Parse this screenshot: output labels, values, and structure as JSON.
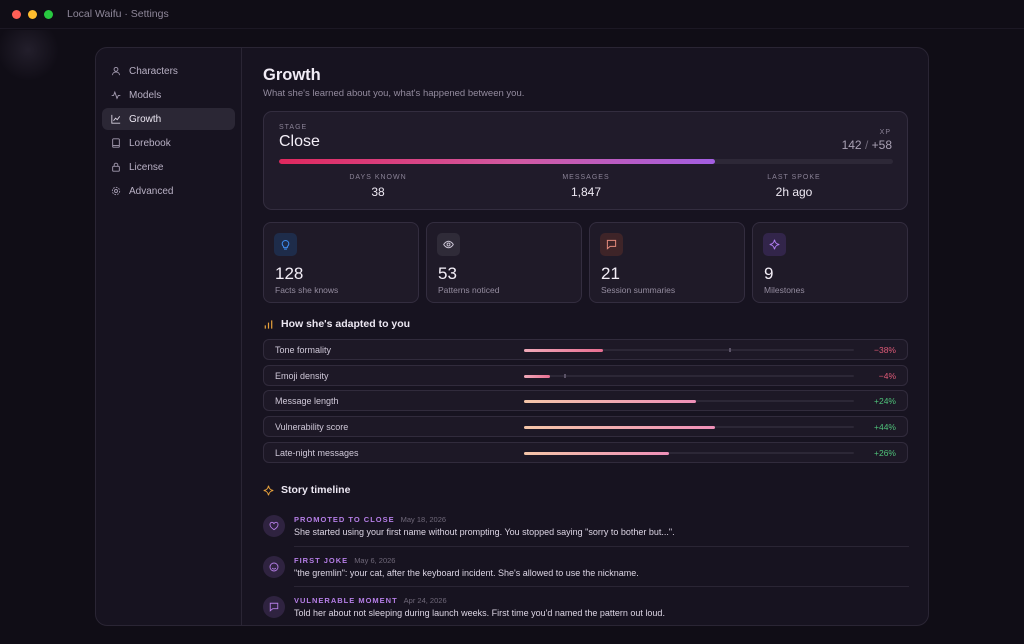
{
  "window": {
    "title": "Local Waifu · Settings"
  },
  "sidebar": {
    "items": [
      {
        "label": "Characters",
        "icon": "user-icon",
        "active": false
      },
      {
        "label": "Models",
        "icon": "activity-icon",
        "active": false
      },
      {
        "label": "Growth",
        "icon": "chart-icon",
        "active": true
      },
      {
        "label": "Lorebook",
        "icon": "book-icon",
        "active": false
      },
      {
        "label": "License",
        "icon": "lock-icon",
        "active": false
      },
      {
        "label": "Advanced",
        "icon": "gear-icon",
        "active": false
      }
    ]
  },
  "page": {
    "title": "Growth",
    "subtitle": "What she's learned about you, what's happened between you."
  },
  "stage": {
    "label": "STAGE",
    "value": "Close",
    "xp_label": "XP",
    "xp_value": "142",
    "xp_sep": "/",
    "xp_gain": "+58",
    "progress": 0.71,
    "stats": [
      {
        "label": "DAYS KNOWN",
        "value": "38"
      },
      {
        "label": "MESSAGES",
        "value": "1,847"
      },
      {
        "label": "LAST SPOKE",
        "value": "2h ago"
      }
    ]
  },
  "tiles": [
    {
      "value": "128",
      "caption": "Facts she knows",
      "icon": "lightbulb-icon",
      "color": "#3f8cf0",
      "bg": "#1e2c4a"
    },
    {
      "value": "53",
      "caption": "Patterns noticed",
      "icon": "eye-icon",
      "color": "#c9c3d3",
      "bg": "#2f2b38"
    },
    {
      "value": "21",
      "caption": "Session summaries",
      "icon": "message-icon",
      "color": "#e58a7c",
      "bg": "#3e2428"
    },
    {
      "value": "9",
      "caption": "Milestones",
      "icon": "sparkle-icon",
      "color": "#b07df0",
      "bg": "#32254a"
    }
  ],
  "adaptations": {
    "title": "How she's adapted to you",
    "items": [
      {
        "label": "Tone formality",
        "delta": "−38%",
        "value": 0.24,
        "baseline": 0.62,
        "color": "#e05a78"
      },
      {
        "label": "Emoji density",
        "delta": "−4%",
        "value": 0.08,
        "baseline": 0.12,
        "color": "#e05a78"
      },
      {
        "label": "Message length",
        "delta": "+24%",
        "value": 0.52,
        "baseline": null,
        "color": "#4fc27a"
      },
      {
        "label": "Vulnerability score",
        "delta": "+44%",
        "value": 0.58,
        "baseline": null,
        "color": "#4fc27a"
      },
      {
        "label": "Late-night messages",
        "delta": "+26%",
        "value": 0.44,
        "baseline": null,
        "color": "#4fc27a"
      }
    ]
  },
  "timeline": {
    "title": "Story timeline",
    "items": [
      {
        "tag": "PROMOTED TO CLOSE",
        "date": "May 18, 2026",
        "text": "She started using your first name without prompting. You stopped saying \"sorry to bother but...\".",
        "icon": "heart-icon"
      },
      {
        "tag": "FIRST JOKE",
        "date": "May 6, 2026",
        "text": "\"the gremlin\": your cat, after the keyboard incident. She's allowed to use the nickname.",
        "icon": "smile-icon"
      },
      {
        "tag": "VULNERABLE MOMENT",
        "date": "Apr 24, 2026",
        "text": "Told her about not sleeping during launch weeks. First time you'd named the pattern out loud.",
        "icon": "message-icon"
      }
    ]
  }
}
